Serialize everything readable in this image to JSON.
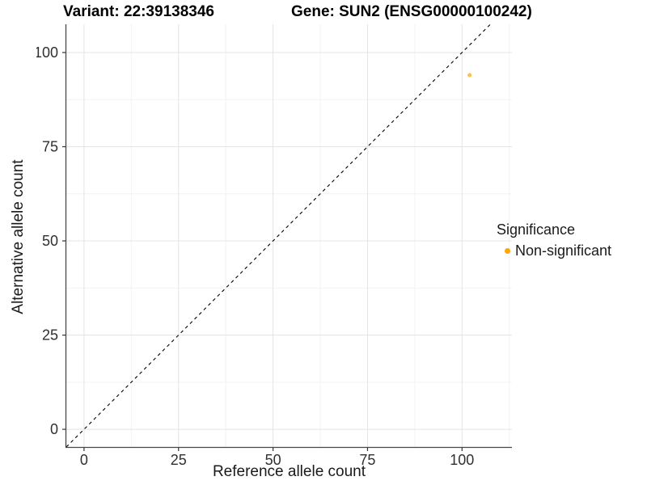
{
  "chart_data": {
    "type": "scatter",
    "titles": {
      "left": "Variant: 22:39138346",
      "right": "Gene: SUN2 (ENSG00000100242)"
    },
    "xlabel": "Reference allele count",
    "ylabel": "Alternative allele count",
    "x_ticks": [
      0,
      25,
      50,
      75,
      100
    ],
    "y_ticks": [
      0,
      25,
      50,
      75,
      100
    ],
    "x_minor": [
      12.5,
      37.5,
      62.5,
      87.5,
      112.5
    ],
    "y_minor": [
      12.5,
      37.5,
      62.5,
      87.5
    ],
    "xlim": [
      -4.9,
      113.2
    ],
    "ylim": [
      -4.7,
      107.5
    ],
    "grid": true,
    "series": [
      {
        "name": "Non-significant",
        "color": "#FFA500",
        "opacity": 0.7,
        "point_radius": 2.5,
        "points": [
          [
            102,
            94
          ]
        ]
      }
    ],
    "reference_line": {
      "type": "identity",
      "slope": 1,
      "intercept": 0,
      "style": "dashed",
      "color": "#000000"
    },
    "legend": {
      "title": "Significance",
      "position": "right",
      "items": [
        {
          "label": "Non-significant",
          "color": "#FFA500"
        }
      ]
    }
  },
  "colors": {
    "background": "#ffffff",
    "grid_major": "#e4e4e4",
    "grid_minor": "#f2f2f2",
    "axis_line": "#474747",
    "tick": "#333333",
    "tick_label": "#303030",
    "point": "#FFA500"
  }
}
